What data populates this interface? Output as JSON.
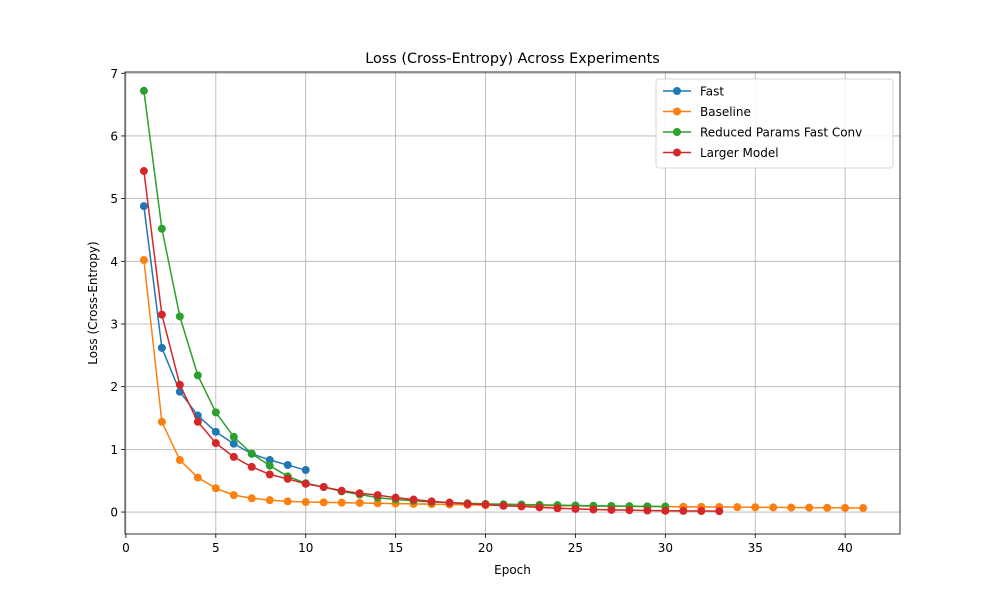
{
  "chart_data": {
    "type": "line",
    "title": "Loss (Cross-Entropy) Across Experiments",
    "xlabel": "Epoch",
    "ylabel": "Loss (Cross-Entropy)",
    "xlim": [
      -0.05,
      43.05
    ],
    "ylim": [
      -0.35,
      7.02
    ],
    "xticks": [
      0,
      5,
      10,
      15,
      20,
      25,
      30,
      35,
      40
    ],
    "yticks": [
      0,
      1,
      2,
      3,
      4,
      5,
      6,
      7
    ],
    "grid": true,
    "legend_position": "top-right",
    "series": [
      {
        "name": "Fast",
        "color": "#1f77b4",
        "x": [
          1,
          2,
          3,
          4,
          5,
          6,
          7,
          8,
          9,
          10
        ],
        "y": [
          4.88,
          2.62,
          1.92,
          1.54,
          1.28,
          1.09,
          0.93,
          0.83,
          0.75,
          0.67
        ]
      },
      {
        "name": "Baseline",
        "color": "#ff7f0e",
        "x": [
          1,
          2,
          3,
          4,
          5,
          6,
          7,
          8,
          9,
          10,
          11,
          12,
          13,
          14,
          15,
          16,
          17,
          18,
          19,
          20,
          21,
          22,
          23,
          24,
          25,
          26,
          27,
          28,
          29,
          30,
          31,
          32,
          33,
          34,
          35,
          36,
          37,
          38,
          39,
          40,
          41
        ],
        "y": [
          4.02,
          1.44,
          0.83,
          0.55,
          0.38,
          0.27,
          0.22,
          0.19,
          0.17,
          0.16,
          0.155,
          0.15,
          0.145,
          0.14,
          0.135,
          0.13,
          0.125,
          0.12,
          0.115,
          0.11,
          0.108,
          0.105,
          0.102,
          0.1,
          0.098,
          0.095,
          0.092,
          0.09,
          0.088,
          0.086,
          0.084,
          0.082,
          0.08,
          0.078,
          0.076,
          0.074,
          0.072,
          0.07,
          0.068,
          0.066,
          0.064
        ]
      },
      {
        "name": "Reduced Params Fast Conv",
        "color": "#2ca02c",
        "x": [
          1,
          2,
          3,
          4,
          5,
          6,
          7,
          8,
          9,
          10,
          11,
          12,
          13,
          14,
          15,
          16,
          17,
          18,
          19,
          20,
          21,
          22,
          23,
          24,
          25,
          26,
          27,
          28,
          29,
          30
        ],
        "y": [
          6.72,
          4.52,
          3.12,
          2.18,
          1.59,
          1.2,
          0.93,
          0.74,
          0.57,
          0.46,
          0.4,
          0.33,
          0.28,
          0.23,
          0.2,
          0.18,
          0.16,
          0.15,
          0.14,
          0.13,
          0.125,
          0.12,
          0.115,
          0.11,
          0.105,
          0.1,
          0.097,
          0.094,
          0.091,
          0.088
        ]
      },
      {
        "name": "Larger Model",
        "color": "#d62728",
        "x": [
          1,
          2,
          3,
          4,
          5,
          6,
          7,
          8,
          9,
          10,
          11,
          12,
          13,
          14,
          15,
          16,
          17,
          18,
          19,
          20,
          21,
          22,
          23,
          24,
          25,
          26,
          27,
          28,
          29,
          30,
          31,
          32,
          33
        ],
        "y": [
          5.44,
          3.15,
          2.03,
          1.44,
          1.1,
          0.88,
          0.72,
          0.6,
          0.53,
          0.45,
          0.4,
          0.34,
          0.3,
          0.27,
          0.23,
          0.2,
          0.17,
          0.15,
          0.13,
          0.12,
          0.1,
          0.09,
          0.075,
          0.06,
          0.05,
          0.04,
          0.035,
          0.03,
          0.025,
          0.02,
          0.018,
          0.016,
          0.015
        ]
      }
    ]
  }
}
